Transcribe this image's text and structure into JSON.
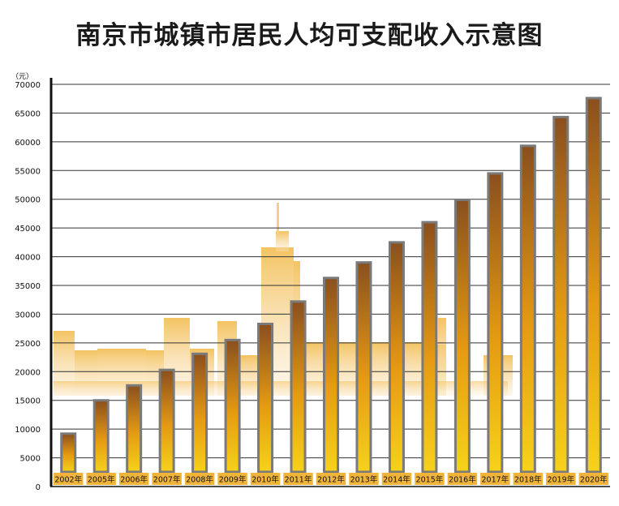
{
  "chart_data": {
    "type": "bar",
    "title": "南京市城镇市居民人均可支配收入示意图",
    "ylabel": "（元）",
    "xlabel": "",
    "ylim": [
      0,
      70000
    ],
    "yticks": [
      0,
      5000,
      10000,
      15000,
      20000,
      25000,
      30000,
      35000,
      40000,
      45000,
      50000,
      55000,
      60000,
      65000,
      70000
    ],
    "grid": true,
    "categories": [
      "2002年",
      "2005年",
      "2006年",
      "2007年",
      "2008年",
      "2009年",
      "2010年",
      "2011年",
      "2012年",
      "2013年",
      "2014年",
      "2015年",
      "2016年",
      "2017年",
      "2018年",
      "2019年",
      "2020年"
    ],
    "values": [
      9200,
      15000,
      17600,
      20300,
      23100,
      25500,
      28300,
      32200,
      36300,
      39000,
      42500,
      46000,
      49900,
      54500,
      59300,
      64300,
      67600
    ],
    "colors": {
      "bar_top": "#8a4f1e",
      "bar_mid": "#e59a12",
      "bar_bottom": "#f6d21a",
      "bar_border": "#7a7a7a",
      "label_bg": "#f0b43a",
      "grid": "#333333",
      "skyline": "#f5cf86"
    }
  }
}
